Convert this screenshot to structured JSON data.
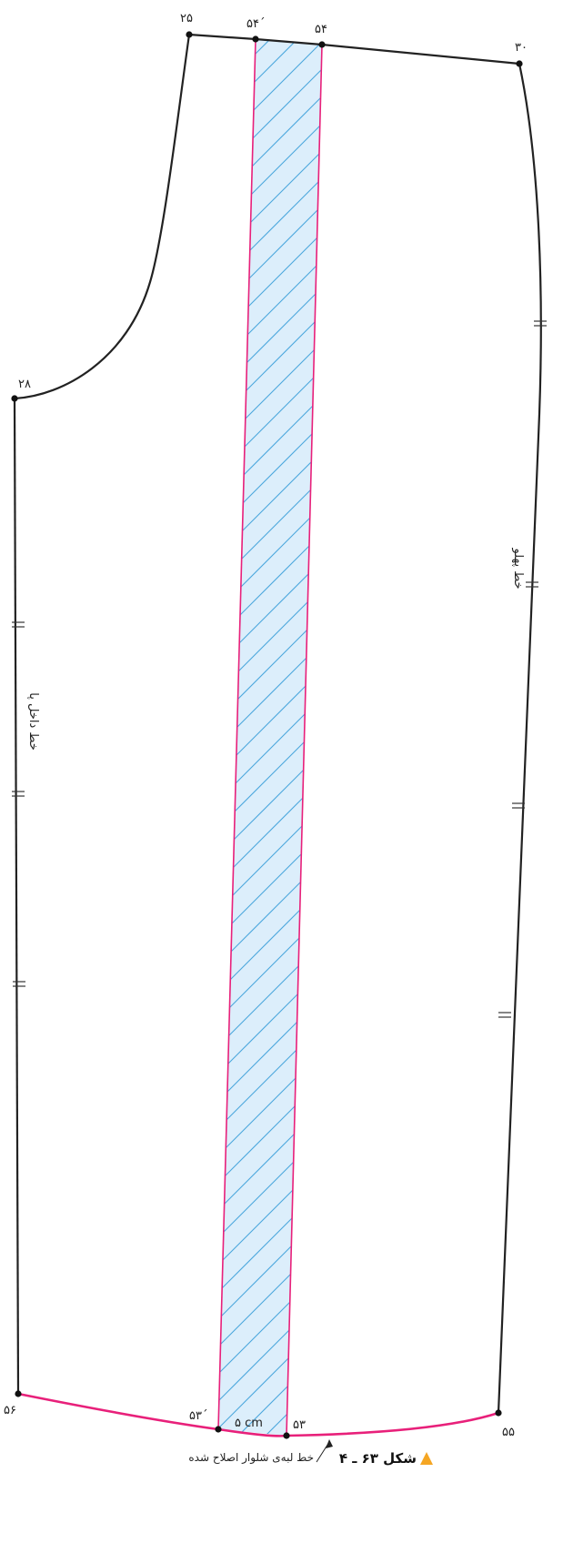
{
  "figure": {
    "caption": "شکل ۶۳ ـ ۴",
    "colors": {
      "outline": "#222222",
      "seam": "#e8207a",
      "hatch": "#4aa6dc",
      "hatch_fill": "#dceefb",
      "caption_triangle": "#f5a623"
    }
  },
  "points": {
    "p25": "۲۵",
    "p54_prime": "۵۴ˊ",
    "p54": "۵۴",
    "p30": "۳۰",
    "p28": "۲۸",
    "p56": "۵۶",
    "p53_prime": "۵۳ˊ",
    "p53": "۵۳",
    "p55": "۵۵"
  },
  "labels": {
    "outer_side": "خط پهلو",
    "inner_leg": "خط داخل پا",
    "strip_width": "۵ cm",
    "hem_note": "خط لبه‌ی شلوار اصلاح شده"
  }
}
